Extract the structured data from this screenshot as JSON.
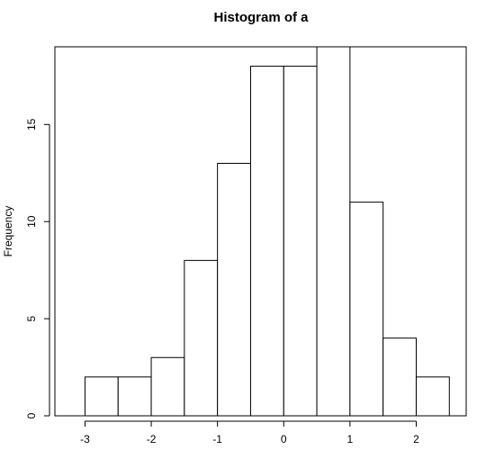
{
  "chart_data": {
    "type": "bar",
    "title": "Histogram of a",
    "xlabel": "",
    "ylabel": "Frequency",
    "bin_edges": [
      -3.0,
      -2.5,
      -2.0,
      -1.5,
      -1.0,
      -0.5,
      0.0,
      0.5,
      1.0,
      1.5,
      2.0,
      2.5
    ],
    "values": [
      2,
      2,
      3,
      8,
      13,
      18,
      18,
      19,
      11,
      4,
      2
    ],
    "xlim": [
      -3.4,
      2.7
    ],
    "ylim": [
      0,
      19
    ],
    "x_ticks": [
      -3,
      -2,
      -1,
      0,
      1,
      2
    ],
    "x_tick_labels": [
      "-3",
      "-2",
      "-1",
      "0",
      "1",
      "2"
    ],
    "y_ticks": [
      0,
      5,
      10,
      15
    ],
    "y_tick_labels": [
      "0",
      "5",
      "10",
      "15"
    ],
    "grid": false,
    "colors": {
      "bar_fill": "#ffffff",
      "bar_stroke": "#000000"
    }
  }
}
